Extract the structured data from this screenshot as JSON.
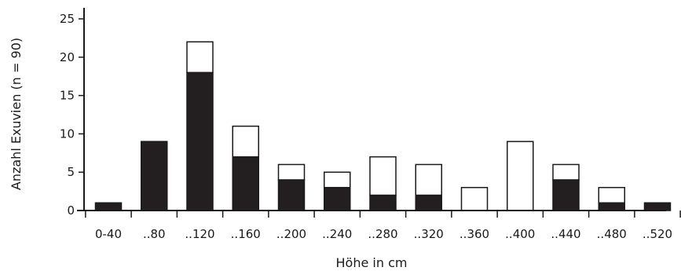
{
  "chart_data": {
    "type": "bar",
    "stacked": true,
    "xlabel": "Höhe in cm",
    "ylabel": "Anzahl Exuvien (n = 90)",
    "ylim": [
      0,
      25
    ],
    "yticks": [
      "0",
      "5",
      "10",
      "15",
      "20",
      "25"
    ],
    "categories": [
      "0-40",
      "..80",
      "..120",
      "..160",
      "..200",
      "..240",
      "..280",
      "..320",
      "..360",
      "..400",
      "..440",
      "..480",
      "..520"
    ],
    "series": [
      {
        "values": [
          1,
          9,
          18,
          7,
          4,
          3,
          2,
          2,
          0,
          0,
          4,
          1,
          1
        ],
        "color": "#231f20"
      },
      {
        "values": [
          0,
          0,
          4,
          4,
          2,
          2,
          5,
          4,
          3,
          9,
          2,
          2,
          0
        ],
        "color": "#ffffff"
      }
    ],
    "grid": false,
    "legend": "none"
  }
}
